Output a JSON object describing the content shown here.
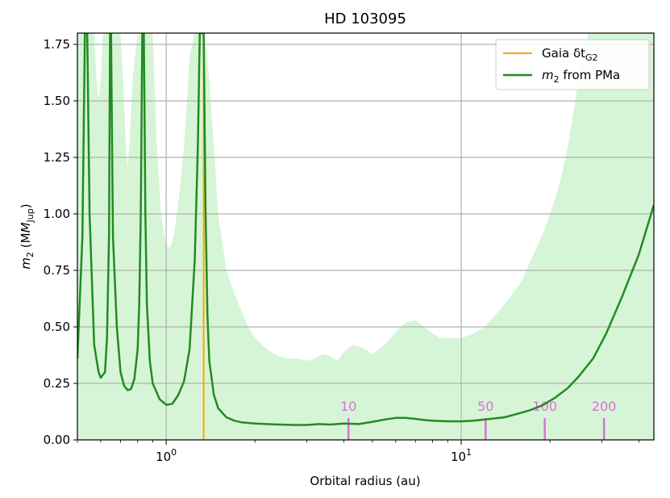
{
  "chart_data": {
    "type": "line",
    "title": "HD 103095",
    "xlabel": "Orbital radius (au)",
    "ylabel": "m",
    "ylabel_sub": "2",
    "ylabel_rest": " (M",
    "ylabel_unit_sub": "Jup",
    "ylabel_close": ")",
    "xscale": "log",
    "xlim": [
      0.5,
      45
    ],
    "ylim": [
      0,
      1.8
    ],
    "grid": true,
    "legend_position": "top-right",
    "x_ticks": [
      {
        "value": 1,
        "base": "10",
        "exp": "0"
      },
      {
        "value": 10,
        "base": "10",
        "exp": "1"
      }
    ],
    "y_ticks": [
      {
        "value": 0.0,
        "label": "0.00"
      },
      {
        "value": 0.25,
        "label": "0.25"
      },
      {
        "value": 0.5,
        "label": "0.50"
      },
      {
        "value": 0.75,
        "label": "0.75"
      },
      {
        "value": 1.0,
        "label": "1.00"
      },
      {
        "value": 1.25,
        "label": "1.25"
      },
      {
        "value": 1.5,
        "label": "1.50"
      },
      {
        "value": 1.75,
        "label": "1.75"
      }
    ],
    "gaia_line": {
      "legend_label_main": "Gaia δt",
      "legend_label_sub": "G2",
      "x": 1.34,
      "color": "#ffa500"
    },
    "series": [
      {
        "legend_label_main": "m",
        "legend_label_sub": "2",
        "legend_label_rest": " from PMa",
        "color": "#228b22",
        "x": [
          0.5,
          0.52,
          0.53,
          0.54,
          0.55,
          0.57,
          0.59,
          0.6,
          0.62,
          0.63,
          0.64,
          0.645,
          0.65,
          0.66,
          0.68,
          0.7,
          0.72,
          0.74,
          0.76,
          0.78,
          0.8,
          0.81,
          0.82,
          0.83,
          0.84,
          0.85,
          0.86,
          0.88,
          0.9,
          0.95,
          1.0,
          1.05,
          1.1,
          1.15,
          1.2,
          1.25,
          1.28,
          1.3,
          1.32,
          1.34,
          1.36,
          1.38,
          1.4,
          1.45,
          1.5,
          1.6,
          1.7,
          1.8,
          2.0,
          2.3,
          2.7,
          3.0,
          3.3,
          3.6,
          4.0,
          4.5,
          5.0,
          5.5,
          6.0,
          6.5,
          7.0,
          7.5,
          8.0,
          9.0,
          10.0,
          11.0,
          12.0,
          13.0,
          14.0,
          15.0,
          17.0,
          19.0,
          21.0,
          23.0,
          25.0,
          28.0,
          31.0,
          35.0,
          40.0,
          45.0
        ],
        "y": [
          0.36,
          0.9,
          1.8,
          1.8,
          1.0,
          0.42,
          0.3,
          0.275,
          0.3,
          0.45,
          0.9,
          1.8,
          1.8,
          0.9,
          0.5,
          0.3,
          0.24,
          0.22,
          0.225,
          0.27,
          0.4,
          0.6,
          1.0,
          1.8,
          1.8,
          1.0,
          0.6,
          0.35,
          0.25,
          0.18,
          0.155,
          0.16,
          0.2,
          0.26,
          0.4,
          0.8,
          1.3,
          1.8,
          1.8,
          1.8,
          1.0,
          0.55,
          0.35,
          0.2,
          0.14,
          0.1,
          0.085,
          0.078,
          0.072,
          0.069,
          0.066,
          0.066,
          0.07,
          0.068,
          0.072,
          0.07,
          0.08,
          0.09,
          0.097,
          0.097,
          0.093,
          0.088,
          0.085,
          0.082,
          0.082,
          0.085,
          0.09,
          0.095,
          0.1,
          0.11,
          0.13,
          0.155,
          0.19,
          0.23,
          0.28,
          0.36,
          0.47,
          0.63,
          0.82,
          1.04
        ]
      }
    ],
    "confidence_band": {
      "color": "#d6f5d6",
      "x": [
        0.5,
        0.52,
        0.53,
        0.55,
        0.57,
        0.58,
        0.59,
        0.6,
        0.61,
        0.62,
        0.63,
        0.64,
        0.65,
        0.67,
        0.7,
        0.72,
        0.73,
        0.74,
        0.75,
        0.77,
        0.8,
        0.82,
        0.85,
        0.88,
        0.9,
        0.93,
        0.96,
        1.0,
        1.03,
        1.06,
        1.1,
        1.15,
        1.2,
        1.25,
        1.3,
        1.35,
        1.4,
        1.45,
        1.5,
        1.6,
        1.7,
        1.8,
        1.9,
        2.0,
        2.2,
        2.4,
        2.6,
        2.8,
        3.0,
        3.2,
        3.4,
        3.6,
        3.8,
        4.0,
        4.3,
        4.6,
        5.0,
        5.5,
        6.0,
        6.5,
        7.0,
        7.5,
        8.0,
        8.5,
        9.0,
        10.0,
        11.0,
        12.0,
        13.0,
        14.0,
        15.0,
        16.0,
        17.0,
        18.0,
        19.0,
        20.0,
        21.0,
        22.0,
        23.0,
        24.0,
        25.0,
        26.0,
        27.0,
        28.0,
        45.0
      ],
      "upper": [
        1.8,
        1.8,
        1.8,
        1.8,
        1.8,
        1.6,
        1.5,
        1.6,
        1.8,
        1.8,
        1.8,
        1.8,
        1.8,
        1.8,
        1.8,
        1.5,
        1.3,
        1.2,
        1.3,
        1.6,
        1.8,
        1.8,
        1.8,
        1.8,
        1.8,
        1.3,
        1.0,
        0.86,
        0.85,
        0.9,
        1.05,
        1.3,
        1.7,
        1.8,
        1.8,
        1.8,
        1.6,
        1.3,
        1.0,
        0.75,
        0.65,
        0.57,
        0.5,
        0.45,
        0.4,
        0.37,
        0.36,
        0.36,
        0.35,
        0.36,
        0.38,
        0.37,
        0.35,
        0.39,
        0.42,
        0.41,
        0.38,
        0.42,
        0.48,
        0.52,
        0.53,
        0.5,
        0.47,
        0.45,
        0.45,
        0.45,
        0.47,
        0.5,
        0.55,
        0.6,
        0.65,
        0.7,
        0.78,
        0.85,
        0.92,
        1.0,
        1.08,
        1.18,
        1.3,
        1.45,
        1.6,
        1.72,
        1.8,
        1.8,
        1.8
      ]
    },
    "period_markers": {
      "color": "#da70d6",
      "items": [
        {
          "label": "10",
          "x": 4.15
        },
        {
          "label": "50",
          "x": 12.1
        },
        {
          "label": "100",
          "x": 19.2
        },
        {
          "label": "200",
          "x": 30.5
        }
      ]
    }
  }
}
